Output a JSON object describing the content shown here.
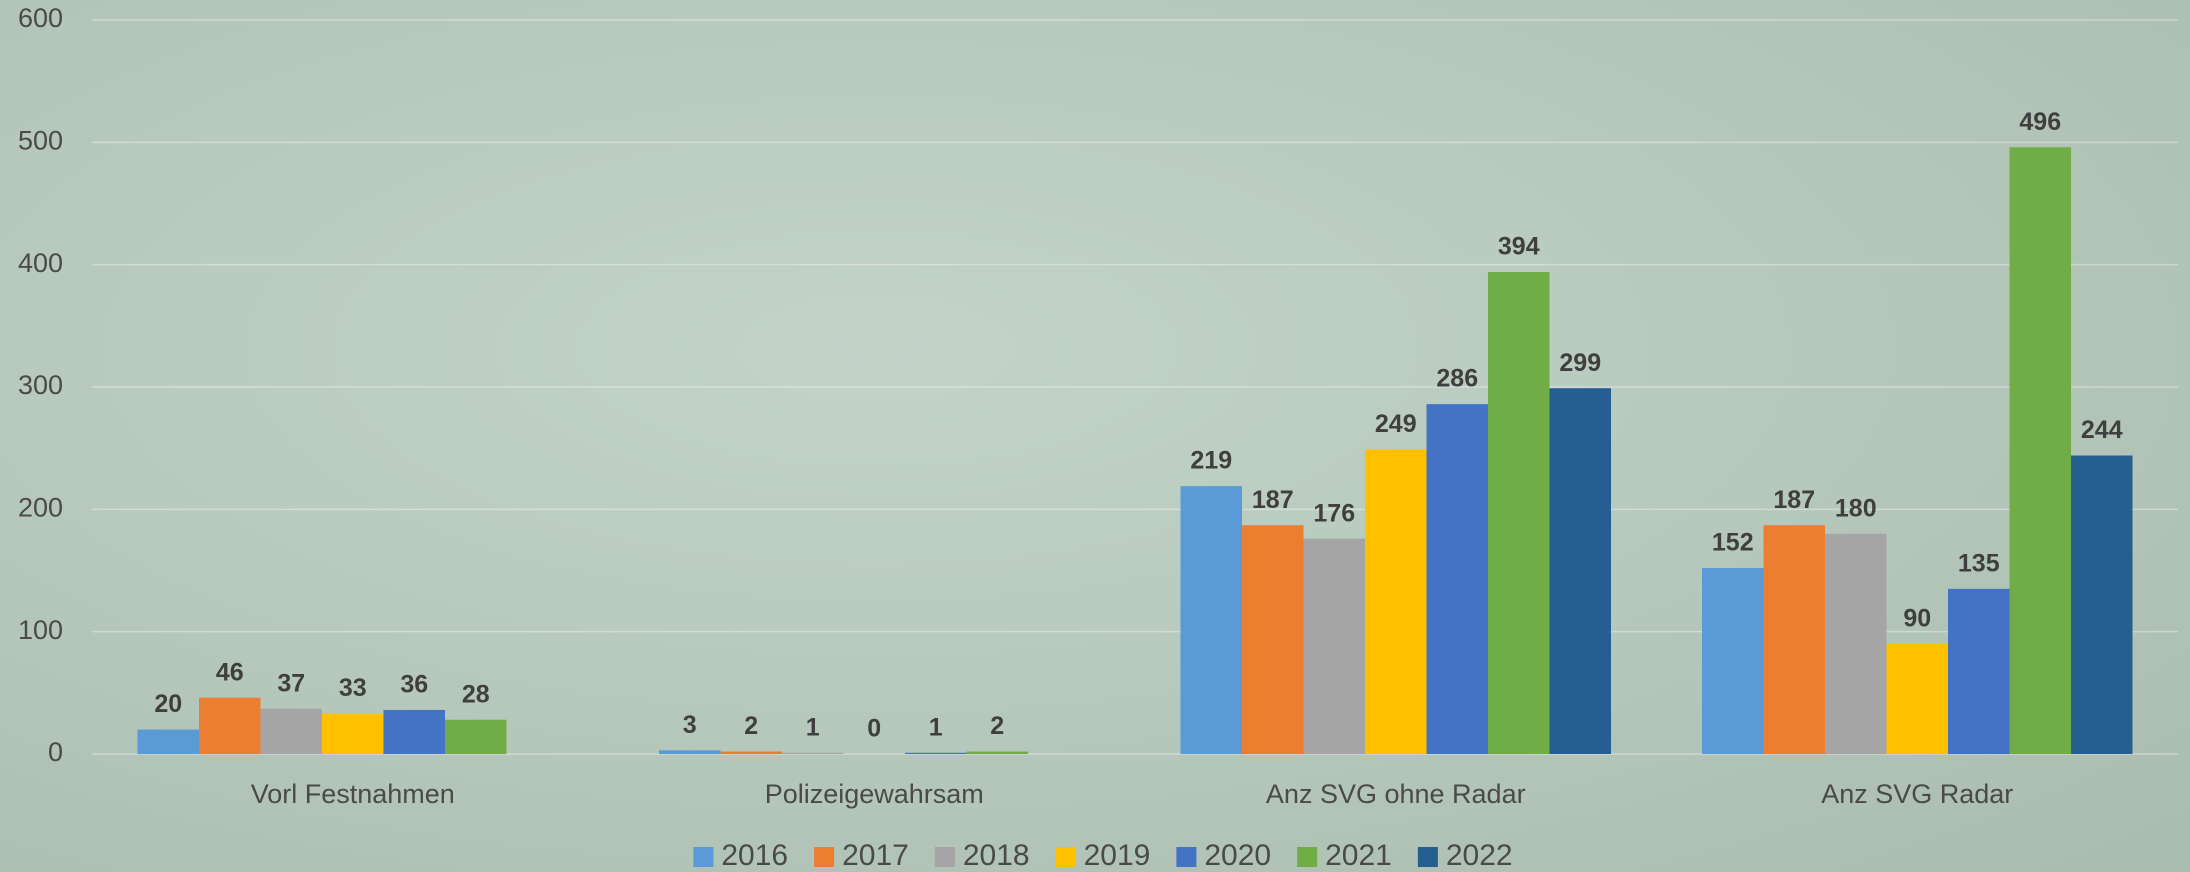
{
  "chart_data": {
    "type": "bar",
    "categories": [
      "Vorl Festnahmen",
      "Polizeigewahrsam",
      "Anz SVG ohne Radar",
      "Anz SVG Radar"
    ],
    "series": [
      {
        "name": "2016",
        "color": "#5b9bd5",
        "values": [
          20,
          3,
          219,
          152
        ]
      },
      {
        "name": "2017",
        "color": "#ed7d31",
        "values": [
          46,
          2,
          187,
          187
        ]
      },
      {
        "name": "2018",
        "color": "#a5a5a5",
        "values": [
          37,
          1,
          176,
          180
        ]
      },
      {
        "name": "2019",
        "color": "#ffc000",
        "values": [
          33,
          0,
          249,
          90
        ]
      },
      {
        "name": "2020",
        "color": "#4472c4",
        "values": [
          36,
          1,
          286,
          135
        ]
      },
      {
        "name": "2021",
        "color": "#70ad47",
        "values": [
          28,
          2,
          394,
          496
        ]
      },
      {
        "name": "2022",
        "color": "#255e91",
        "values": [
          null,
          null,
          299,
          244
        ]
      }
    ],
    "ylim": [
      0,
      600
    ],
    "yticks": [
      0,
      100,
      200,
      300,
      400,
      500,
      600
    ],
    "grid": true,
    "legend": "bottom"
  }
}
